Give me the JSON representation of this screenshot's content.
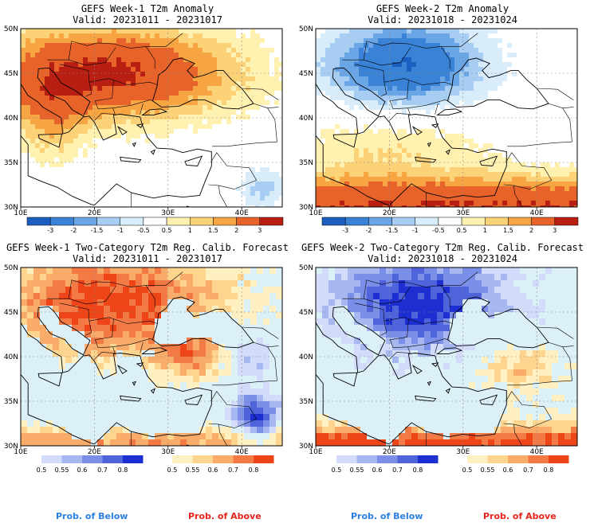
{
  "panels": [
    {
      "id": "p1",
      "title": "GEFS Week-1 T2m Anomaly",
      "valid": "Valid: 20231011 - 20231017",
      "scheme": "anom",
      "mode": "warm"
    },
    {
      "id": "p2",
      "title": "GEFS Week-2 T2m Anomaly",
      "valid": "Valid: 20231018 - 20231024",
      "scheme": "anom",
      "mode": "cold"
    },
    {
      "id": "p3",
      "title": "GEFS Week-1 Two-Category T2m Reg. Calib. Forecast",
      "valid": "Valid: 20231011 - 20231017",
      "scheme": "prob",
      "mode": "warm"
    },
    {
      "id": "p4",
      "title": "GEFS Week-2 Two-Category T2m Reg. Calib. Forecast",
      "valid": "Valid: 20231018 - 20231024",
      "scheme": "prob",
      "mode": "cold"
    }
  ],
  "axes": {
    "lat_labels": [
      "50N",
      "45N",
      "40N",
      "35N",
      "30N"
    ],
    "lon_labels": [
      "10E",
      "20E",
      "30E",
      "40E"
    ]
  },
  "anomaly_colorbar": {
    "labels": [
      "-3",
      "-2",
      "-1.5",
      "-1",
      "-0.5",
      "0.5",
      "1",
      "1.5",
      "2",
      "3"
    ],
    "colors": [
      "#1d5fc0",
      "#3a82d6",
      "#6aa6e6",
      "#a7cdf2",
      "#d9ecfa",
      "#ffffff",
      "#fff1b0",
      "#fbd277",
      "#f7a542",
      "#e8632a",
      "#b81e12"
    ]
  },
  "probability_colorbar": {
    "below_labels": [
      "0.5",
      "0.55",
      "0.6",
      "0.7",
      "0.8"
    ],
    "below_colors": [
      "#d2dcfa",
      "#a7b8f1",
      "#7b8fe8",
      "#4f63db",
      "#1d2fd0"
    ],
    "above_labels": [
      "0.5",
      "0.55",
      "0.6",
      "0.7",
      "0.8"
    ],
    "above_colors": [
      "#fff0c2",
      "#fdd58f",
      "#f9ac6a",
      "#f37a45",
      "#ed4517"
    ]
  },
  "footer": {
    "below": "Prob. of Below",
    "above": "Prob. of Above",
    "below_color": "#2a7fe0",
    "above_color": "#e8231b"
  }
}
